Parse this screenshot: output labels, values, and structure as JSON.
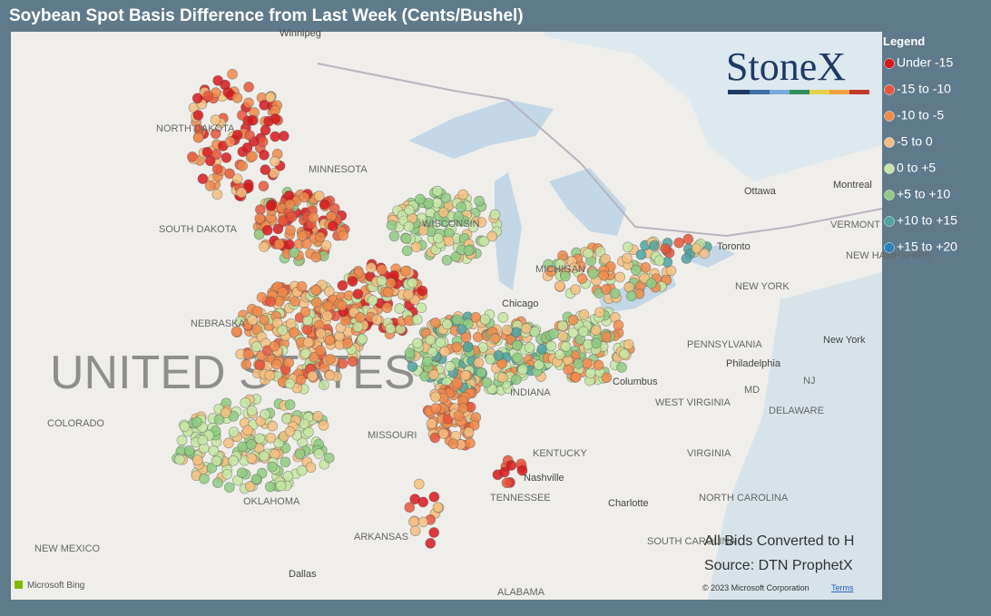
{
  "title": "Soybean Spot Basis Difference from Last Week (Cents/Bushel)",
  "logo": "StoneX",
  "legend": {
    "title": "Legend",
    "items": [
      {
        "label": "Under -15",
        "color": "#d7191c"
      },
      {
        "label": "-15 to -10",
        "color": "#e8553a"
      },
      {
        "label": "-10 to -5",
        "color": "#f08a4b"
      },
      {
        "label": "-5 to 0",
        "color": "#f4bf80"
      },
      {
        "label": "0 to +5",
        "color": "#c6e6a3"
      },
      {
        "label": "+5 to +10",
        "color": "#8fcb82"
      },
      {
        "label": "+10 to +15",
        "color": "#4fa3a0"
      },
      {
        "label": "+15 to +20",
        "color": "#2b83ba"
      }
    ]
  },
  "map": {
    "labels": [
      "Winnipeg",
      "NORTH DAKOTA",
      "MINNESOTA",
      "SOUTH DAKOTA",
      "WISCONSIN",
      "MICHIGAN",
      "Chicago",
      "NEBRASKA",
      "UNITED STATES",
      "COLORADO",
      "MISSOURI",
      "INDIANA",
      "Columbus",
      "PENNSYLVANIA",
      "Philadelphia",
      "NEW YORK",
      "New York",
      "Toronto",
      "Ottawa",
      "Montreal",
      "VERMONT",
      "NEW HAMPSHIRE",
      "MD",
      "NJ",
      "DELAWARE",
      "WEST VIRGINIA",
      "VIRGINIA",
      "KENTUCKY",
      "Nashville",
      "TENNESSEE",
      "Charlotte",
      "NORTH CAROLINA",
      "SOUTH CAROLINA",
      "OKLAHOMA",
      "ARKANSAS",
      "NEW MEXICO",
      "Dallas",
      "ALABAMA"
    ]
  },
  "notes": [
    "All Bids Converted to H",
    "Source: DTN ProphetX"
  ],
  "footer": {
    "bing": "Microsoft Bing",
    "copyright": "© 2023 Microsoft Corporation",
    "terms": "Terms"
  }
}
